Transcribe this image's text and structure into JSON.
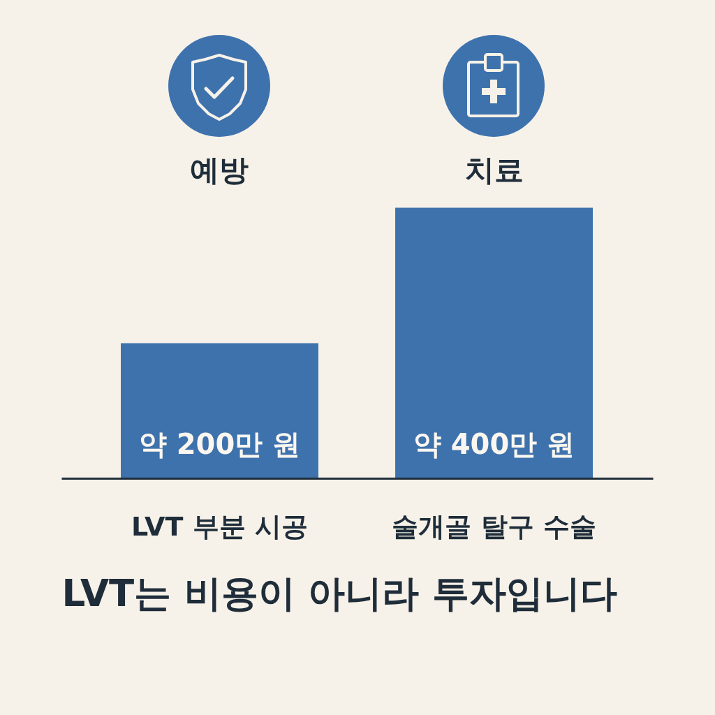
{
  "chart_data": {
    "type": "bar",
    "title": "LVT는 비용이 아니라 투자입니다",
    "categories": [
      "LVT 부분 시공",
      "술개골 탈구 수술"
    ],
    "values": [
      200,
      400
    ],
    "value_labels": [
      "약 200만 원",
      "약 400만 원"
    ],
    "color": "#3e72ad",
    "annotations": [
      "예방",
      "치료"
    ]
  }
}
